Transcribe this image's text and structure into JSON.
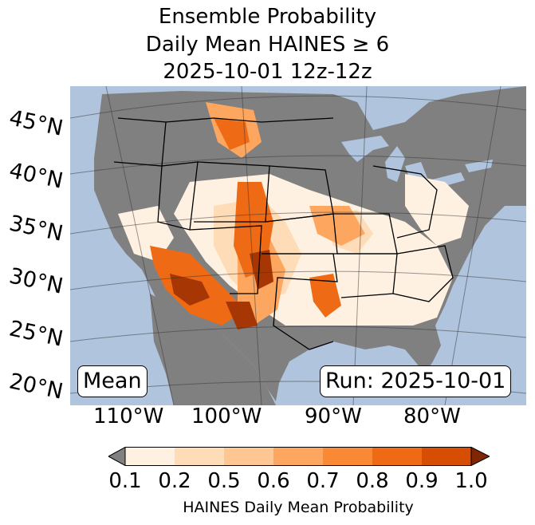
{
  "title": {
    "line1": "Ensemble Probability",
    "line2": "Daily Mean HAINES ≥ 6",
    "line3": "2025-10-01 12z-12z"
  },
  "map": {
    "ocean_color": "#b0c4de",
    "land_color": "#808080",
    "lat_labels": [
      "45°N",
      "40°N",
      "35°N",
      "30°N",
      "25°N",
      "20°N"
    ],
    "lon_labels": [
      "110°W",
      "100°W",
      "90°W",
      "80°W"
    ],
    "mean_label": "Mean",
    "run_label": "Run: 2025-10-01"
  },
  "colorbar": {
    "ticks": [
      "0.1",
      "0.2",
      "0.5",
      "0.6",
      "0.7",
      "0.8",
      "0.9",
      "1.0"
    ],
    "colors": [
      "#fff1e2",
      "#fedcb8",
      "#fdc692",
      "#fca65f",
      "#f98935",
      "#ee6a14",
      "#d64d04",
      "#a63603"
    ],
    "under_color": "#808080",
    "over_color": "#7f2704",
    "label": "HAINES Daily Mean Probability"
  }
}
